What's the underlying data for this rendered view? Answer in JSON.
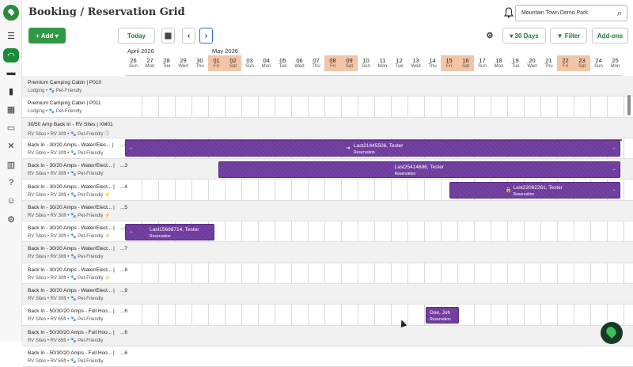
{
  "header": {
    "title": "Booking / Reservation Grid",
    "park_name": "Mountain Town Demo Park"
  },
  "toolbar": {
    "add_label": "+ Add ▾",
    "today_label": "Today",
    "prev_label": "‹",
    "next_label": "›",
    "days_label": "▾ 30 Days",
    "filter_label": "▼ Filter",
    "addons_label": "Add-ons"
  },
  "months": [
    "April 2026",
    "May 2026"
  ],
  "days": [
    {
      "d": "26",
      "w": "Sun"
    },
    {
      "d": "27",
      "w": "Mon"
    },
    {
      "d": "28",
      "w": "Tue"
    },
    {
      "d": "29",
      "w": "Wed"
    },
    {
      "d": "30",
      "w": "Thu"
    },
    {
      "d": "01",
      "w": "Fri"
    },
    {
      "d": "02",
      "w": "Sat"
    },
    {
      "d": "03",
      "w": "Sun"
    },
    {
      "d": "04",
      "w": "Mon"
    },
    {
      "d": "05",
      "w": "Tue"
    },
    {
      "d": "06",
      "w": "Wed"
    },
    {
      "d": "07",
      "w": "Thu"
    },
    {
      "d": "08",
      "w": "Fri"
    },
    {
      "d": "09",
      "w": "Sat"
    },
    {
      "d": "10",
      "w": "Sun"
    },
    {
      "d": "11",
      "w": "Mon"
    },
    {
      "d": "12",
      "w": "Tue"
    },
    {
      "d": "13",
      "w": "Wed"
    },
    {
      "d": "14",
      "w": "Thu"
    },
    {
      "d": "15",
      "w": "Fri"
    },
    {
      "d": "16",
      "w": "Sat"
    },
    {
      "d": "17",
      "w": "Sun"
    },
    {
      "d": "18",
      "w": "Mon"
    },
    {
      "d": "19",
      "w": "Tue"
    },
    {
      "d": "20",
      "w": "Wed"
    },
    {
      "d": "21",
      "w": "Thu"
    },
    {
      "d": "22",
      "w": "Fri"
    },
    {
      "d": "23",
      "w": "Sat"
    },
    {
      "d": "24",
      "w": "Sun"
    },
    {
      "d": "25",
      "w": "Mon"
    }
  ],
  "sites": [
    {
      "n1": "Premium Camping Cabin | P010",
      "n2": "Lodging • 🐾 Pet-Friendly",
      "n3": ""
    },
    {
      "n1": "Premium Camping Cabin | P011",
      "n2": "Lodging • 🐾 Pet-Friendly",
      "n3": ""
    },
    {
      "n1": "30/50 Amp Back In - RV Sites | XM01",
      "n2": "RV Sites • RV 30ft • 🐾 Pet-Friendly  ⓘ",
      "n3": ""
    },
    {
      "n1": "Back In - 30/20 Amps - Water/Elec... |",
      "n2": "RV Sites • RV 30ft • 🐾 Pet-Friendly",
      "n3": "...01"
    },
    {
      "n1": "Back In - 30/20 Amps - Water/Elect... |",
      "n2": "RV Sites • RV 35ft • 🐾 Pet-Friendly",
      "n3": "...3"
    },
    {
      "n1": "Back In - 30/20 Amps - Water/Elect... |",
      "n2": "RV Sites • RV 30ft • 🐾 Pet-Friendly ⚡",
      "n3": "...4"
    },
    {
      "n1": "Back In - 30/20 Amps - Water/Elect... |",
      "n2": "RV Sites • RV 30ft • 🐾 Pet-Friendly ⚡",
      "n3": "...5"
    },
    {
      "n1": "Back In - 30/20 Amps - Water/Elect... |",
      "n2": "RV Sites • RV 30ft • 🐾 Pet-Friendly ⚡",
      "n3": "...6"
    },
    {
      "n1": "Back In - 30/20 Amps - Water/Elect... |",
      "n2": "RV Sites • RV 30ft • 🐾 Pet-Friendly",
      "n3": "...7"
    },
    {
      "n1": "Back In - 30/20 Amps - Water/Elect... |",
      "n2": "RV Sites • RV 30ft • 🐾 Pet-Friendly ⚡",
      "n3": "...8"
    },
    {
      "n1": "Back In - 30/20 Amps - Water/Elect... |",
      "n2": "RV Sites • RV 30ft • 🐾 Pet-Friendly",
      "n3": "...9"
    },
    {
      "n1": "Back In - 50/30/20 Amps - Full Hoo... |",
      "n2": "RV Sites • RV 65ft • 🐾 Pet-Friendly",
      "n3": "...6"
    },
    {
      "n1": "Back In - 50/30/20 Amps - Full Hoo... |",
      "n2": "RV Sites • RV 65ft • 🐾 Pet-Friendly",
      "n3": "...6"
    },
    {
      "n1": "Back In - 50/30/20 Amps - Full Hoo... |",
      "n2": "RV Sites • RV 65ft • 🐾 Pet-Friendly",
      "n3": "...6"
    }
  ],
  "reservations": [
    {
      "name": "Last21445506, Tester",
      "status": "Reservation"
    },
    {
      "name": "Last25414686, Tester",
      "status": "Reservation"
    },
    {
      "name": "Last22062261, Tester",
      "status": "Reservation"
    },
    {
      "name": "Last15698714, Tester",
      "status": "Reservation"
    },
    {
      "name": "Doe, Joh",
      "status": "Reservation"
    }
  ],
  "icons": {
    "sidebar": [
      "menu-collapse-icon",
      "headset-icon",
      "card-icon",
      "chart-icon",
      "building-icon",
      "pos-icon",
      "tools-icon",
      "map-icon",
      "help-icon",
      "users-icon",
      "settings-icon"
    ],
    "accent": "#2f9a45",
    "reservation_color": "#6d3a9c",
    "weekend_color": "#f5c4a6"
  }
}
